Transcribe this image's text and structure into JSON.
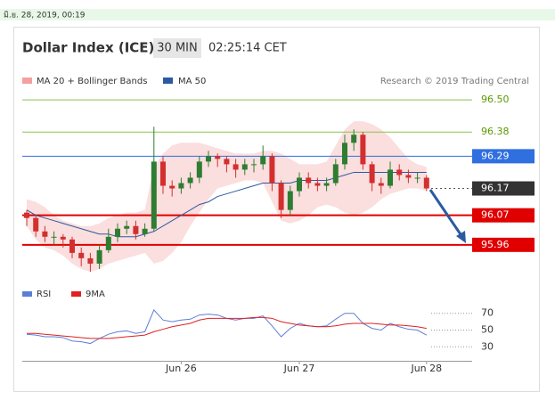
{
  "header": {
    "timestamp": "มิ.ย. 28, 2019, 00:19"
  },
  "chart_data": {
    "type": "candlestick",
    "title": "Dollar Index (ICE)",
    "interval": "30 MIN",
    "time": "02:25:14 CET",
    "source": "Research © 2019 Trading Central",
    "categories": [
      null,
      null,
      null,
      null,
      null,
      null,
      null,
      null,
      null,
      null,
      null,
      null,
      null,
      null,
      null,
      null,
      null,
      "Jun 26",
      null,
      null,
      null,
      null,
      null,
      null,
      null,
      null,
      null,
      null,
      null,
      null,
      "Jun 27",
      null,
      null,
      null,
      null,
      null,
      null,
      null,
      null,
      null,
      null,
      null,
      null,
      null,
      "Jun 28"
    ],
    "ohlc": [
      [
        96.08,
        96.09,
        96.03,
        96.06
      ],
      [
        96.06,
        96.07,
        95.99,
        96.01
      ],
      [
        96.01,
        96.03,
        95.97,
        95.99
      ],
      [
        95.99,
        96.01,
        95.96,
        95.99
      ],
      [
        95.99,
        96.0,
        95.95,
        95.98
      ],
      [
        95.98,
        95.99,
        95.91,
        95.93
      ],
      [
        95.93,
        95.95,
        95.88,
        95.91
      ],
      [
        95.91,
        95.93,
        95.86,
        95.89
      ],
      [
        95.89,
        95.96,
        95.87,
        95.94
      ],
      [
        95.94,
        96.02,
        95.93,
        95.99
      ],
      [
        95.99,
        96.04,
        95.97,
        96.02
      ],
      [
        96.02,
        96.05,
        96.0,
        96.03
      ],
      [
        96.03,
        96.05,
        95.98,
        96.0
      ],
      [
        96.0,
        96.04,
        95.99,
        96.02
      ],
      [
        96.02,
        96.4,
        96.01,
        96.27
      ],
      [
        96.27,
        96.29,
        96.15,
        96.18
      ],
      [
        96.18,
        96.2,
        96.14,
        96.17
      ],
      [
        96.17,
        96.21,
        96.15,
        96.19
      ],
      [
        96.19,
        96.23,
        96.17,
        96.21
      ],
      [
        96.21,
        96.29,
        96.19,
        96.27
      ],
      [
        96.27,
        96.31,
        96.25,
        96.29
      ],
      [
        96.29,
        96.3,
        96.25,
        96.28
      ],
      [
        96.28,
        96.29,
        96.23,
        96.26
      ],
      [
        96.26,
        96.28,
        96.21,
        96.24
      ],
      [
        96.24,
        96.28,
        96.22,
        96.26
      ],
      [
        96.26,
        96.28,
        96.23,
        96.26
      ],
      [
        96.26,
        96.33,
        96.24,
        96.29
      ],
      [
        96.29,
        96.3,
        96.16,
        96.19
      ],
      [
        96.19,
        96.2,
        96.06,
        96.09
      ],
      [
        96.09,
        96.18,
        96.07,
        96.16
      ],
      [
        96.16,
        96.23,
        96.14,
        96.21
      ],
      [
        96.21,
        96.23,
        96.17,
        96.19
      ],
      [
        96.19,
        96.21,
        96.16,
        96.18
      ],
      [
        96.18,
        96.21,
        96.16,
        96.19
      ],
      [
        96.19,
        96.28,
        96.18,
        96.26
      ],
      [
        96.26,
        96.37,
        96.24,
        96.34
      ],
      [
        96.34,
        96.39,
        96.31,
        96.37
      ],
      [
        96.37,
        96.38,
        96.24,
        96.26
      ],
      [
        96.26,
        96.27,
        96.16,
        96.19
      ],
      [
        96.19,
        96.21,
        96.15,
        96.18
      ],
      [
        96.18,
        96.27,
        96.17,
        96.24
      ],
      [
        96.24,
        96.26,
        96.2,
        96.22
      ],
      [
        96.22,
        96.24,
        96.19,
        96.21
      ],
      [
        96.21,
        96.23,
        96.19,
        96.21
      ],
      [
        96.21,
        96.22,
        96.16,
        96.17
      ]
    ],
    "up_color": "#2e7d32",
    "down_color": "#d32f2f",
    "ylim": [
      95.84,
      96.55
    ],
    "bands": {
      "name": "MA 20 + Bollinger Bands",
      "color": "#f4a0a0",
      "upper": [
        96.13,
        96.12,
        96.1,
        96.07,
        96.05,
        96.04,
        96.03,
        96.03,
        96.04,
        96.06,
        96.07,
        96.08,
        96.08,
        96.09,
        96.25,
        96.3,
        96.33,
        96.34,
        96.34,
        96.34,
        96.33,
        96.32,
        96.31,
        96.3,
        96.3,
        96.3,
        96.31,
        96.31,
        96.3,
        96.28,
        96.26,
        96.26,
        96.26,
        96.27,
        96.33,
        96.39,
        96.42,
        96.42,
        96.41,
        96.39,
        96.36,
        96.32,
        96.28,
        96.26,
        96.25
      ],
      "lower": [
        96.03,
        95.98,
        95.95,
        95.94,
        95.92,
        95.89,
        95.87,
        95.86,
        95.87,
        95.89,
        95.9,
        95.91,
        95.92,
        95.93,
        95.89,
        95.9,
        95.93,
        95.97,
        96.03,
        96.08,
        96.13,
        96.17,
        96.18,
        96.19,
        96.2,
        96.2,
        96.19,
        96.12,
        96.05,
        96.04,
        96.05,
        96.07,
        96.1,
        96.11,
        96.1,
        96.08,
        96.07,
        96.08,
        96.1,
        96.13,
        96.15,
        96.16,
        96.17,
        96.17,
        96.16
      ]
    },
    "ma": {
      "name": "MA 50",
      "color": "#2c5aa0",
      "values": [
        96.09,
        96.07,
        96.06,
        96.05,
        96.04,
        96.03,
        96.02,
        96.01,
        96.0,
        96.0,
        95.99,
        95.99,
        95.99,
        96.0,
        96.01,
        96.03,
        96.05,
        96.07,
        96.09,
        96.11,
        96.12,
        96.14,
        96.15,
        96.16,
        96.17,
        96.18,
        96.19,
        96.19,
        96.19,
        96.19,
        96.2,
        96.2,
        96.2,
        96.2,
        96.21,
        96.22,
        96.23,
        96.23,
        96.23,
        96.23,
        96.23,
        96.23,
        96.23,
        96.23,
        96.23
      ]
    },
    "levels": [
      {
        "value": 96.5,
        "label": "96.50",
        "color": "#8bc34a",
        "kind": "plain"
      },
      {
        "value": 96.38,
        "label": "96.38",
        "color": "#8bc34a",
        "kind": "plain"
      },
      {
        "value": 96.29,
        "label": "96.29",
        "color": "#2f6fe0",
        "kind": "box"
      },
      {
        "value": 96.17,
        "label": "96.17",
        "color": "#333333",
        "kind": "current"
      },
      {
        "value": 96.07,
        "label": "96.07",
        "color": "#e00000",
        "kind": "box"
      },
      {
        "value": 95.96,
        "label": "95.96",
        "color": "#e00000",
        "kind": "box"
      }
    ],
    "rsi": {
      "ylim": [
        25,
        75
      ],
      "yticks": [
        70,
        50,
        30
      ],
      "series": [
        {
          "name": "RSI",
          "color": "#5b7fd6",
          "values": [
            45,
            44,
            42,
            42,
            41,
            37,
            36,
            34,
            40,
            45,
            48,
            49,
            46,
            48,
            74,
            62,
            60,
            62,
            63,
            68,
            69,
            68,
            64,
            62,
            64,
            64,
            67,
            55,
            42,
            52,
            58,
            55,
            54,
            55,
            63,
            70,
            70,
            58,
            52,
            50,
            58,
            54,
            51,
            50,
            44
          ]
        },
        {
          "name": "9MA",
          "color": "#e02020",
          "values": [
            46,
            46,
            45,
            44,
            43,
            42,
            41,
            40,
            40,
            40,
            41,
            42,
            43,
            44,
            48,
            51,
            54,
            56,
            58,
            62,
            64,
            64,
            64,
            64,
            64,
            65,
            65,
            64,
            60,
            58,
            56,
            55,
            54,
            54,
            55,
            57,
            58,
            58,
            58,
            57,
            56,
            56,
            55,
            54,
            52
          ]
        }
      ]
    }
  }
}
